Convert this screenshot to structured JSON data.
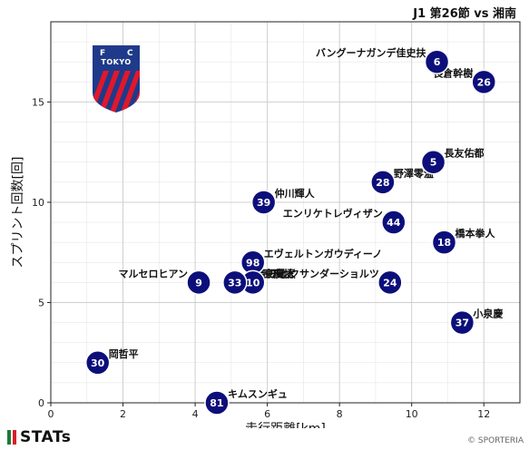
{
  "page": {
    "title": "J1 第26節 vs 湘南",
    "brand": "STATs",
    "credit": "© SPORTERIA",
    "logo_letters": [
      "F",
      "C",
      "TOKYO"
    ]
  },
  "colors": {
    "point": "#0c0f7a",
    "point_text": "#ffffff",
    "grid": "#cfcfcf",
    "logo_blue": "#1f3a8a",
    "logo_red": "#e2172b",
    "brand_bar_green": "#1b7a3a",
    "brand_bar_red": "#d71f26"
  },
  "chart_data": {
    "type": "scatter",
    "xlabel": "走行距離[km]",
    "ylabel": "スプリント回数[回]",
    "xlim": [
      0,
      13
    ],
    "ylim": [
      0,
      19
    ],
    "xticks": [
      0,
      2,
      4,
      6,
      8,
      10,
      12
    ],
    "yticks": [
      0,
      5,
      10,
      15
    ],
    "grid": true,
    "points": [
      {
        "number": "6",
        "name": "バングーナガンデ佳史扶",
        "x": 10.7,
        "y": 17,
        "label_side": "left"
      },
      {
        "number": "26",
        "name": "長倉幹樹",
        "x": 12.0,
        "y": 16,
        "label_side": "left"
      },
      {
        "number": "5",
        "name": "長友佑都",
        "x": 10.6,
        "y": 12,
        "label_side": "right"
      },
      {
        "number": "28",
        "name": "野澤零温",
        "x": 9.2,
        "y": 11,
        "label_side": "right"
      },
      {
        "number": "39",
        "name": "仲川輝人",
        "x": 5.9,
        "y": 10,
        "label_side": "right"
      },
      {
        "number": "44",
        "name": "エンリケトレヴィザン",
        "x": 9.5,
        "y": 9,
        "label_side": "left"
      },
      {
        "number": "18",
        "name": "橋本拳人",
        "x": 10.9,
        "y": 8,
        "label_side": "right"
      },
      {
        "number": "98",
        "name": "エヴェルトンガウディーノ",
        "x": 5.6,
        "y": 7,
        "label_side": "right"
      },
      {
        "number": "10",
        "name": "東慶悟",
        "x": 5.6,
        "y": 6,
        "label_side": "right"
      },
      {
        "number": "24",
        "name": "アレクサンダーショルツ",
        "x": 9.4,
        "y": 6,
        "label_side": "left"
      },
      {
        "number": "33",
        "name": "俵積田晃太",
        "x": 5.1,
        "y": 6,
        "label_side": "right"
      },
      {
        "number": "9",
        "name": "マルセロヒアン",
        "x": 4.1,
        "y": 6,
        "label_side": "left"
      },
      {
        "number": "37",
        "name": "小泉慶",
        "x": 11.4,
        "y": 4,
        "label_side": "right"
      },
      {
        "number": "30",
        "name": "岡哲平",
        "x": 1.3,
        "y": 2,
        "label_side": "right"
      },
      {
        "number": "81",
        "name": "キムスンギュ",
        "x": 4.6,
        "y": 0,
        "label_side": "right"
      }
    ]
  }
}
